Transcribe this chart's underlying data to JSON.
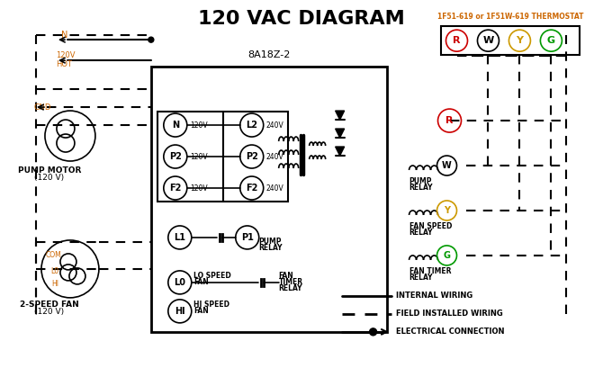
{
  "title": "120 VAC DIAGRAM",
  "title_fontsize": 16,
  "title_color": "#000000",
  "bg_color": "#ffffff",
  "line_color": "#000000",
  "orange_color": "#cc6600",
  "thermostat_label": "1F51-619 or 1F51W-619 THERMOSTAT",
  "control_box_label": "8A18Z-2",
  "legend_items": [
    {
      "label": "INTERNAL WIRING",
      "style": "solid"
    },
    {
      "label": "FIELD INSTALLED WIRING",
      "style": "dashed"
    },
    {
      "label": "ELECTRICAL CONNECTION",
      "style": "dot_arrow"
    }
  ]
}
